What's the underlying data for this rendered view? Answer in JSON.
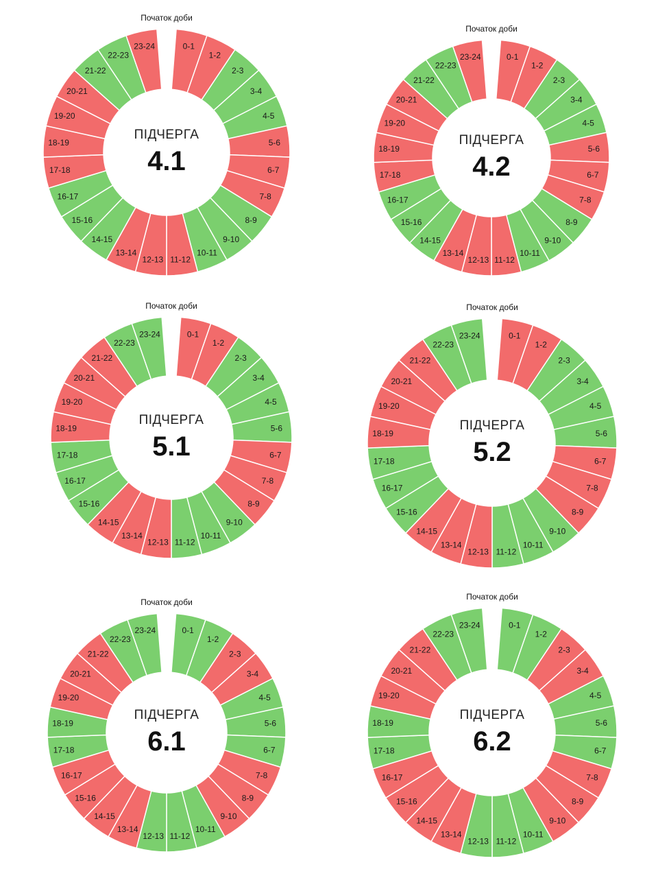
{
  "colors": {
    "on": "#7bcf6e",
    "off": "#f26b6b"
  },
  "state_legend": {
    "g": "on",
    "r": "off"
  },
  "charts": [
    {
      "start_label": "Початок доби",
      "title_word": "ПІДЧЕРГА",
      "queue": "4.1",
      "segments": [
        {
          "label": "0-1",
          "state": "r"
        },
        {
          "label": "1-2",
          "state": "r"
        },
        {
          "label": "2-3",
          "state": "g"
        },
        {
          "label": "3-4",
          "state": "g"
        },
        {
          "label": "4-5",
          "state": "g"
        },
        {
          "label": "5-6",
          "state": "r"
        },
        {
          "label": "6-7",
          "state": "r"
        },
        {
          "label": "7-8",
          "state": "r"
        },
        {
          "label": "8-9",
          "state": "g"
        },
        {
          "label": "9-10",
          "state": "g"
        },
        {
          "label": "10-11",
          "state": "g"
        },
        {
          "label": "11-12",
          "state": "r"
        },
        {
          "label": "12-13",
          "state": "r"
        },
        {
          "label": "13-14",
          "state": "r"
        },
        {
          "label": "14-15",
          "state": "g"
        },
        {
          "label": "15-16",
          "state": "g"
        },
        {
          "label": "16-17",
          "state": "g"
        },
        {
          "label": "17-18",
          "state": "r"
        },
        {
          "label": "18-19",
          "state": "r"
        },
        {
          "label": "19-20",
          "state": "r"
        },
        {
          "label": "20-21",
          "state": "r"
        },
        {
          "label": "21-22",
          "state": "g"
        },
        {
          "label": "22-23",
          "state": "g"
        },
        {
          "label": "23-24",
          "state": "r"
        }
      ]
    },
    {
      "start_label": "Початок доби",
      "title_word": "ПІДЧЕРГА",
      "queue": "4.2",
      "segments": [
        {
          "label": "0-1",
          "state": "r"
        },
        {
          "label": "1-2",
          "state": "r"
        },
        {
          "label": "2-3",
          "state": "g"
        },
        {
          "label": "3-4",
          "state": "g"
        },
        {
          "label": "4-5",
          "state": "g"
        },
        {
          "label": "5-6",
          "state": "r"
        },
        {
          "label": "6-7",
          "state": "r"
        },
        {
          "label": "7-8",
          "state": "r"
        },
        {
          "label": "8-9",
          "state": "g"
        },
        {
          "label": "9-10",
          "state": "g"
        },
        {
          "label": "10-11",
          "state": "g"
        },
        {
          "label": "11-12",
          "state": "r"
        },
        {
          "label": "12-13",
          "state": "r"
        },
        {
          "label": "13-14",
          "state": "r"
        },
        {
          "label": "14-15",
          "state": "g"
        },
        {
          "label": "15-16",
          "state": "g"
        },
        {
          "label": "16-17",
          "state": "g"
        },
        {
          "label": "17-18",
          "state": "r"
        },
        {
          "label": "18-19",
          "state": "r"
        },
        {
          "label": "19-20",
          "state": "r"
        },
        {
          "label": "20-21",
          "state": "r"
        },
        {
          "label": "21-22",
          "state": "g"
        },
        {
          "label": "22-23",
          "state": "g"
        },
        {
          "label": "23-24",
          "state": "r"
        }
      ]
    },
    {
      "start_label": "Початок доби",
      "title_word": "ПІДЧЕРГА",
      "queue": "5.1",
      "segments": [
        {
          "label": "0-1",
          "state": "r"
        },
        {
          "label": "1-2",
          "state": "r"
        },
        {
          "label": "2-3",
          "state": "g"
        },
        {
          "label": "3-4",
          "state": "g"
        },
        {
          "label": "4-5",
          "state": "g"
        },
        {
          "label": "5-6",
          "state": "g"
        },
        {
          "label": "6-7",
          "state": "r"
        },
        {
          "label": "7-8",
          "state": "r"
        },
        {
          "label": "8-9",
          "state": "r"
        },
        {
          "label": "9-10",
          "state": "g"
        },
        {
          "label": "10-11",
          "state": "g"
        },
        {
          "label": "11-12",
          "state": "g"
        },
        {
          "label": "12-13",
          "state": "r"
        },
        {
          "label": "13-14",
          "state": "r"
        },
        {
          "label": "14-15",
          "state": "r"
        },
        {
          "label": "15-16",
          "state": "g"
        },
        {
          "label": "16-17",
          "state": "g"
        },
        {
          "label": "17-18",
          "state": "g"
        },
        {
          "label": "18-19",
          "state": "r"
        },
        {
          "label": "19-20",
          "state": "r"
        },
        {
          "label": "20-21",
          "state": "r"
        },
        {
          "label": "21-22",
          "state": "r"
        },
        {
          "label": "22-23",
          "state": "g"
        },
        {
          "label": "23-24",
          "state": "g"
        }
      ]
    },
    {
      "start_label": "Початок доби",
      "title_word": "ПІДЧЕРГА",
      "queue": "5.2",
      "segments": [
        {
          "label": "0-1",
          "state": "r"
        },
        {
          "label": "1-2",
          "state": "r"
        },
        {
          "label": "2-3",
          "state": "g"
        },
        {
          "label": "3-4",
          "state": "g"
        },
        {
          "label": "4-5",
          "state": "g"
        },
        {
          "label": "5-6",
          "state": "g"
        },
        {
          "label": "6-7",
          "state": "r"
        },
        {
          "label": "7-8",
          "state": "r"
        },
        {
          "label": "8-9",
          "state": "r"
        },
        {
          "label": "9-10",
          "state": "g"
        },
        {
          "label": "10-11",
          "state": "g"
        },
        {
          "label": "11-12",
          "state": "g"
        },
        {
          "label": "12-13",
          "state": "r"
        },
        {
          "label": "13-14",
          "state": "r"
        },
        {
          "label": "14-15",
          "state": "r"
        },
        {
          "label": "15-16",
          "state": "g"
        },
        {
          "label": "16-17",
          "state": "g"
        },
        {
          "label": "17-18",
          "state": "g"
        },
        {
          "label": "18-19",
          "state": "r"
        },
        {
          "label": "19-20",
          "state": "r"
        },
        {
          "label": "20-21",
          "state": "r"
        },
        {
          "label": "21-22",
          "state": "r"
        },
        {
          "label": "22-23",
          "state": "g"
        },
        {
          "label": "23-24",
          "state": "g"
        }
      ]
    },
    {
      "start_label": "Початок доби",
      "title_word": "ПІДЧЕРГА",
      "queue": "6.1",
      "segments": [
        {
          "label": "0-1",
          "state": "g"
        },
        {
          "label": "1-2",
          "state": "g"
        },
        {
          "label": "2-3",
          "state": "r"
        },
        {
          "label": "3-4",
          "state": "r"
        },
        {
          "label": "4-5",
          "state": "g"
        },
        {
          "label": "5-6",
          "state": "g"
        },
        {
          "label": "6-7",
          "state": "g"
        },
        {
          "label": "7-8",
          "state": "r"
        },
        {
          "label": "8-9",
          "state": "r"
        },
        {
          "label": "9-10",
          "state": "r"
        },
        {
          "label": "10-11",
          "state": "g"
        },
        {
          "label": "11-12",
          "state": "g"
        },
        {
          "label": "12-13",
          "state": "g"
        },
        {
          "label": "13-14",
          "state": "r"
        },
        {
          "label": "14-15",
          "state": "r"
        },
        {
          "label": "15-16",
          "state": "r"
        },
        {
          "label": "16-17",
          "state": "r"
        },
        {
          "label": "17-18",
          "state": "g"
        },
        {
          "label": "18-19",
          "state": "g"
        },
        {
          "label": "19-20",
          "state": "r"
        },
        {
          "label": "20-21",
          "state": "r"
        },
        {
          "label": "21-22",
          "state": "r"
        },
        {
          "label": "22-23",
          "state": "g"
        },
        {
          "label": "23-24",
          "state": "g"
        }
      ]
    },
    {
      "start_label": "Початок доби",
      "title_word": "ПІДЧЕРГА",
      "queue": "6.2",
      "segments": [
        {
          "label": "0-1",
          "state": "g"
        },
        {
          "label": "1-2",
          "state": "g"
        },
        {
          "label": "2-3",
          "state": "r"
        },
        {
          "label": "3-4",
          "state": "r"
        },
        {
          "label": "4-5",
          "state": "g"
        },
        {
          "label": "5-6",
          "state": "g"
        },
        {
          "label": "6-7",
          "state": "g"
        },
        {
          "label": "7-8",
          "state": "r"
        },
        {
          "label": "8-9",
          "state": "r"
        },
        {
          "label": "9-10",
          "state": "r"
        },
        {
          "label": "10-11",
          "state": "g"
        },
        {
          "label": "11-12",
          "state": "g"
        },
        {
          "label": "12-13",
          "state": "g"
        },
        {
          "label": "13-14",
          "state": "r"
        },
        {
          "label": "14-15",
          "state": "r"
        },
        {
          "label": "15-16",
          "state": "r"
        },
        {
          "label": "16-17",
          "state": "r"
        },
        {
          "label": "17-18",
          "state": "g"
        },
        {
          "label": "18-19",
          "state": "g"
        },
        {
          "label": "19-20",
          "state": "r"
        },
        {
          "label": "20-21",
          "state": "r"
        },
        {
          "label": "21-22",
          "state": "r"
        },
        {
          "label": "22-23",
          "state": "g"
        },
        {
          "label": "23-24",
          "state": "g"
        }
      ]
    }
  ]
}
